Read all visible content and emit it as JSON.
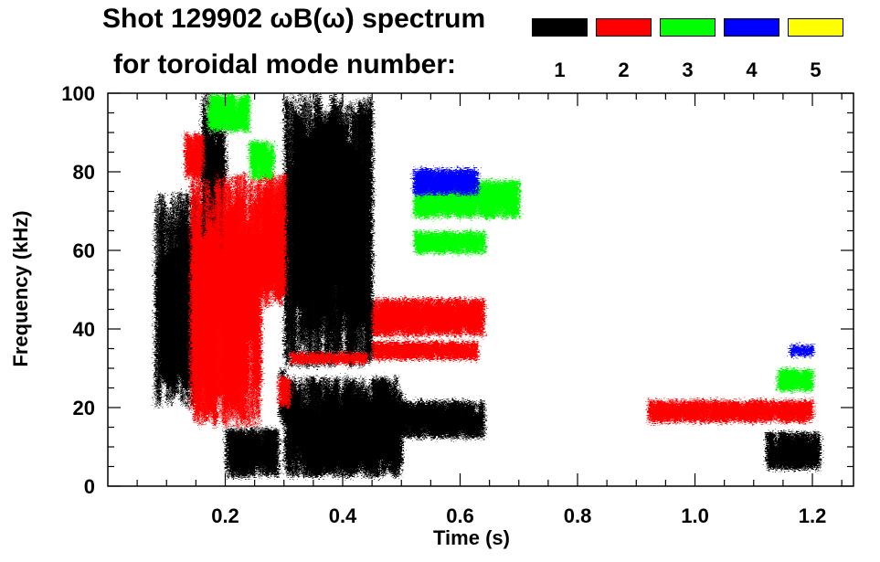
{
  "chart_data": {
    "type": "spectrogram",
    "title": "Shot 129902 ωB(ω) spectrum",
    "subtitle": "for toroidal mode number:",
    "xlabel": "Time (s)",
    "ylabel": "Frequency (kHz)",
    "xlim": [
      0.0,
      1.27
    ],
    "ylim": [
      0,
      100
    ],
    "x_ticks": [
      {
        "value": 0.2,
        "label": "0.2"
      },
      {
        "value": 0.4,
        "label": "0.4"
      },
      {
        "value": 0.6,
        "label": "0.6"
      },
      {
        "value": 0.8,
        "label": "0.8"
      },
      {
        "value": 1.0,
        "label": "1.0"
      },
      {
        "value": 1.2,
        "label": "1.2"
      }
    ],
    "y_ticks": [
      {
        "value": 0,
        "label": "0"
      },
      {
        "value": 20,
        "label": "20"
      },
      {
        "value": 40,
        "label": "40"
      },
      {
        "value": 60,
        "label": "60"
      },
      {
        "value": 80,
        "label": "80"
      },
      {
        "value": 100,
        "label": "100"
      }
    ],
    "legend_placement": "top-right",
    "legend": [
      {
        "label": "1",
        "color": "#000000"
      },
      {
        "label": "2",
        "color": "#ff0000"
      },
      {
        "label": "3",
        "color": "#00ff00"
      },
      {
        "label": "4",
        "color": "#0000ff"
      },
      {
        "label": "5",
        "color": "#ffff00"
      }
    ],
    "series": [
      {
        "mode": 1,
        "color": "#000000",
        "bands": [
          {
            "t": [
              0.08,
              0.15
            ],
            "f": [
              20,
              75
            ]
          },
          {
            "t": [
              0.16,
              0.2
            ],
            "f": [
              40,
              100
            ]
          },
          {
            "t": [
              0.2,
              0.29
            ],
            "f": [
              2,
              15
            ]
          },
          {
            "t": [
              0.29,
              0.3
            ],
            "f": [
              15,
              30
            ]
          },
          {
            "t": [
              0.3,
              0.5
            ],
            "f": [
              2,
              28
            ]
          },
          {
            "t": [
              0.5,
              0.64
            ],
            "f": [
              12,
              22
            ]
          },
          {
            "t": [
              0.3,
              0.45
            ],
            "f": [
              30,
              100
            ]
          },
          {
            "t": [
              1.12,
              1.21
            ],
            "f": [
              4,
              14
            ]
          }
        ]
      },
      {
        "mode": 2,
        "color": "#ff0000",
        "bands": [
          {
            "t": [
              0.13,
              0.16
            ],
            "f": [
              78,
              90
            ]
          },
          {
            "t": [
              0.14,
              0.26
            ],
            "f": [
              15,
              80
            ]
          },
          {
            "t": [
              0.26,
              0.3
            ],
            "f": [
              45,
              80
            ]
          },
          {
            "t": [
              0.31,
              0.44
            ],
            "f": [
              31,
              34
            ]
          },
          {
            "t": [
              0.45,
              0.64
            ],
            "f": [
              38,
              48
            ]
          },
          {
            "t": [
              0.45,
              0.63
            ],
            "f": [
              32,
              37
            ]
          },
          {
            "t": [
              0.29,
              0.31
            ],
            "f": [
              20,
              28
            ]
          },
          {
            "t": [
              0.92,
              1.2
            ],
            "f": [
              16,
              22
            ]
          }
        ]
      },
      {
        "mode": 3,
        "color": "#00ff00",
        "bands": [
          {
            "t": [
              0.17,
              0.24
            ],
            "f": [
              90,
              100
            ]
          },
          {
            "t": [
              0.24,
              0.28
            ],
            "f": [
              78,
              88
            ]
          },
          {
            "t": [
              0.52,
              0.7
            ],
            "f": [
              68,
              78
            ]
          },
          {
            "t": [
              0.52,
              0.64
            ],
            "f": [
              59,
              65
            ]
          },
          {
            "t": [
              1.14,
              1.2
            ],
            "f": [
              24,
              30
            ]
          }
        ]
      },
      {
        "mode": 4,
        "color": "#0000ff",
        "bands": [
          {
            "t": [
              0.52,
              0.63
            ],
            "f": [
              74,
              81
            ]
          },
          {
            "t": [
              1.16,
              1.2
            ],
            "f": [
              33,
              36
            ]
          }
        ]
      },
      {
        "mode": 5,
        "color": "#ffff00",
        "bands": []
      }
    ]
  }
}
